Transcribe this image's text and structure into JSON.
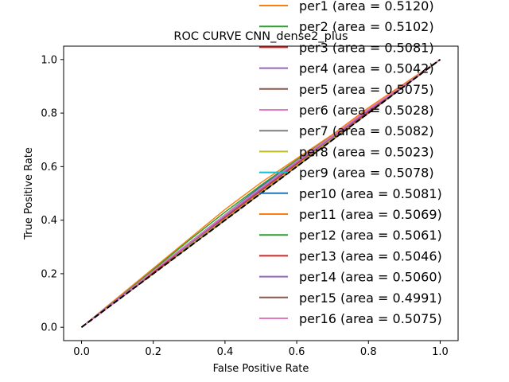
{
  "chart_data": {
    "type": "line",
    "title": "ROC CURVE CNN_dense2_plus",
    "xlabel": "False Positive Rate",
    "ylabel": "True Positive Rate",
    "xlim": [
      -0.05,
      1.05
    ],
    "ylim": [
      -0.05,
      1.05
    ],
    "xticks": [
      "0.0",
      "0.2",
      "0.4",
      "0.6",
      "0.8",
      "1.0"
    ],
    "yticks": [
      "0.0",
      "0.2",
      "0.4",
      "0.6",
      "0.8",
      "1.0"
    ],
    "grid": false,
    "legend_position": "upper-right, extending above the axes",
    "diagonal": {
      "x": [
        0,
        1
      ],
      "y": [
        0,
        1
      ],
      "color": "#000000",
      "style": "dashed"
    },
    "series": [
      {
        "name": "per1 (area = 0.5120)",
        "color": "#ff7f0e",
        "x": [
          0,
          0.1,
          0.2,
          0.3,
          0.4,
          0.5,
          0.6,
          0.7,
          0.8,
          0.9,
          1
        ],
        "y": [
          0,
          0.11,
          0.22,
          0.33,
          0.44,
          0.54,
          0.63,
          0.72,
          0.82,
          0.91,
          1
        ]
      },
      {
        "name": "per2 (area = 0.5102)",
        "color": "#2ca02c",
        "x": [
          0,
          0.1,
          0.2,
          0.3,
          0.4,
          0.5,
          0.6,
          0.7,
          0.8,
          0.9,
          1
        ],
        "y": [
          0,
          0.105,
          0.215,
          0.325,
          0.43,
          0.53,
          0.625,
          0.715,
          0.81,
          0.905,
          1
        ]
      },
      {
        "name": "per3 (area = 0.5081)",
        "color": "#d62728",
        "x": [
          0,
          0.1,
          0.2,
          0.3,
          0.4,
          0.5,
          0.6,
          0.7,
          0.8,
          0.9,
          1
        ],
        "y": [
          0,
          0.105,
          0.21,
          0.315,
          0.42,
          0.525,
          0.62,
          0.715,
          0.81,
          0.905,
          1
        ]
      },
      {
        "name": "per4 (area = 0.5042)",
        "color": "#9467bd",
        "x": [
          0,
          0.1,
          0.2,
          0.3,
          0.4,
          0.5,
          0.6,
          0.7,
          0.8,
          0.9,
          1
        ],
        "y": [
          0,
          0.1,
          0.205,
          0.31,
          0.41,
          0.51,
          0.61,
          0.71,
          0.805,
          0.9,
          1
        ]
      },
      {
        "name": "per5 (area = 0.5075)",
        "color": "#8c564b",
        "x": [
          0,
          0.1,
          0.2,
          0.3,
          0.4,
          0.5,
          0.6,
          0.7,
          0.8,
          0.9,
          1
        ],
        "y": [
          0,
          0.105,
          0.21,
          0.315,
          0.42,
          0.52,
          0.62,
          0.715,
          0.81,
          0.905,
          1
        ]
      },
      {
        "name": "per6 (area = 0.5028)",
        "color": "#e377c2",
        "x": [
          0,
          0.1,
          0.2,
          0.3,
          0.4,
          0.5,
          0.6,
          0.7,
          0.8,
          0.9,
          1
        ],
        "y": [
          0,
          0.1,
          0.205,
          0.305,
          0.41,
          0.51,
          0.61,
          0.71,
          0.81,
          0.905,
          1
        ]
      },
      {
        "name": "per7 (area = 0.5082)",
        "color": "#7f7f7f",
        "x": [
          0,
          0.1,
          0.2,
          0.3,
          0.4,
          0.5,
          0.6,
          0.7,
          0.8,
          0.9,
          1
        ],
        "y": [
          0,
          0.105,
          0.21,
          0.315,
          0.42,
          0.525,
          0.62,
          0.715,
          0.81,
          0.905,
          1
        ]
      },
      {
        "name": "per8 (area = 0.5023)",
        "color": "#bcbd22",
        "x": [
          0,
          0.1,
          0.2,
          0.3,
          0.4,
          0.5,
          0.6,
          0.7,
          0.8,
          0.9,
          1
        ],
        "y": [
          0,
          0.1,
          0.2,
          0.305,
          0.405,
          0.505,
          0.605,
          0.705,
          0.805,
          0.9,
          1
        ]
      },
      {
        "name": "per9 (area = 0.5078)",
        "color": "#17becf",
        "x": [
          0,
          0.1,
          0.2,
          0.3,
          0.4,
          0.5,
          0.6,
          0.7,
          0.8,
          0.9,
          1
        ],
        "y": [
          0,
          0.1,
          0.21,
          0.315,
          0.42,
          0.52,
          0.62,
          0.715,
          0.81,
          0.905,
          1
        ]
      },
      {
        "name": "per10 (area = 0.5081)",
        "color": "#1f77b4",
        "x": [
          0,
          0.1,
          0.2,
          0.3,
          0.4,
          0.5,
          0.6,
          0.7,
          0.8,
          0.9,
          1
        ],
        "y": [
          0,
          0.1,
          0.21,
          0.315,
          0.42,
          0.525,
          0.62,
          0.715,
          0.81,
          0.905,
          1
        ]
      },
      {
        "name": "per11 (area = 0.5069)",
        "color": "#ff7f0e",
        "x": [
          0,
          0.1,
          0.2,
          0.3,
          0.4,
          0.5,
          0.6,
          0.7,
          0.8,
          0.9,
          1
        ],
        "y": [
          0,
          0.105,
          0.21,
          0.315,
          0.415,
          0.52,
          0.615,
          0.715,
          0.81,
          0.905,
          1
        ]
      },
      {
        "name": "per12 (area = 0.5061)",
        "color": "#2ca02c",
        "x": [
          0,
          0.1,
          0.2,
          0.3,
          0.4,
          0.5,
          0.6,
          0.7,
          0.8,
          0.9,
          1
        ],
        "y": [
          0,
          0.105,
          0.21,
          0.31,
          0.415,
          0.515,
          0.615,
          0.71,
          0.81,
          0.905,
          1
        ]
      },
      {
        "name": "per13 (area = 0.5046)",
        "color": "#d62728",
        "x": [
          0,
          0.1,
          0.2,
          0.3,
          0.4,
          0.5,
          0.6,
          0.7,
          0.8,
          0.9,
          1
        ],
        "y": [
          0,
          0.1,
          0.205,
          0.31,
          0.41,
          0.51,
          0.61,
          0.71,
          0.805,
          0.9,
          1
        ]
      },
      {
        "name": "per14 (area = 0.5060)",
        "color": "#9467bd",
        "x": [
          0,
          0.1,
          0.2,
          0.3,
          0.4,
          0.5,
          0.6,
          0.7,
          0.8,
          0.9,
          1
        ],
        "y": [
          0,
          0.105,
          0.21,
          0.31,
          0.415,
          0.515,
          0.615,
          0.71,
          0.81,
          0.905,
          1
        ]
      },
      {
        "name": "per15 (area = 0.4991)",
        "color": "#8c564b",
        "x": [
          0,
          0.1,
          0.2,
          0.3,
          0.4,
          0.5,
          0.6,
          0.7,
          0.8,
          0.9,
          1
        ],
        "y": [
          0,
          0.1,
          0.2,
          0.3,
          0.4,
          0.5,
          0.6,
          0.7,
          0.8,
          0.9,
          1
        ]
      },
      {
        "name": "per16 (area = 0.5075)",
        "color": "#e377c2",
        "x": [
          0,
          0.1,
          0.2,
          0.3,
          0.4,
          0.5,
          0.6,
          0.7,
          0.8,
          0.9,
          1
        ],
        "y": [
          0,
          0.1,
          0.21,
          0.315,
          0.42,
          0.52,
          0.62,
          0.715,
          0.815,
          0.905,
          1
        ]
      }
    ]
  }
}
